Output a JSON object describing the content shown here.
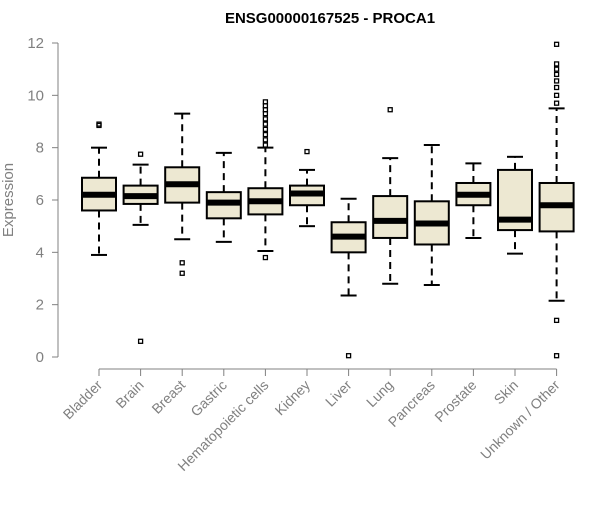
{
  "chart_data": {
    "type": "boxplot",
    "title": "ENSG00000167525 - PROCA1",
    "xlabel": "",
    "ylabel": "Expression",
    "ylim": [
      0,
      12
    ],
    "yticks": [
      0,
      2,
      4,
      6,
      8,
      10,
      12
    ],
    "colors": {
      "box_fill": "#EDE8D2",
      "stroke": "#000000",
      "axis": "#808080"
    },
    "categories": [
      "Bladder",
      "Brain",
      "Breast",
      "Gastric",
      "Hematopoietic cells",
      "Kidney",
      "Liver",
      "Lung",
      "Pancreas",
      "Prostate",
      "Skin",
      "Unknown / Other"
    ],
    "boxes": [
      {
        "name": "Bladder",
        "whisker_low": 3.9,
        "q1": 5.6,
        "median": 6.2,
        "q3": 6.85,
        "whisker_high": 8.0,
        "outliers": [
          8.85,
          8.9
        ]
      },
      {
        "name": "Brain",
        "whisker_low": 5.05,
        "q1": 5.85,
        "median": 6.15,
        "q3": 6.55,
        "whisker_high": 7.35,
        "outliers": [
          7.75,
          0.6
        ]
      },
      {
        "name": "Breast",
        "whisker_low": 4.5,
        "q1": 5.9,
        "median": 6.6,
        "q3": 7.25,
        "whisker_high": 9.3,
        "outliers": [
          3.6,
          3.2
        ]
      },
      {
        "name": "Gastric",
        "whisker_low": 4.4,
        "q1": 5.3,
        "median": 5.9,
        "q3": 6.3,
        "whisker_high": 7.8,
        "outliers": []
      },
      {
        "name": "Hematopoietic cells",
        "whisker_low": 4.05,
        "q1": 5.45,
        "median": 5.95,
        "q3": 6.45,
        "whisker_high": 8.0,
        "outliers": [
          3.8,
          8.1,
          8.3,
          8.5,
          8.7,
          8.9,
          9.1,
          9.3,
          9.45,
          9.6,
          9.75
        ]
      },
      {
        "name": "Kidney",
        "whisker_low": 5.0,
        "q1": 5.8,
        "median": 6.25,
        "q3": 6.55,
        "whisker_high": 7.15,
        "outliers": [
          7.85
        ]
      },
      {
        "name": "Liver",
        "whisker_low": 2.35,
        "q1": 4.0,
        "median": 4.6,
        "q3": 5.15,
        "whisker_high": 6.05,
        "outliers": [
          0.05
        ]
      },
      {
        "name": "Lung",
        "whisker_low": 2.8,
        "q1": 4.55,
        "median": 5.2,
        "q3": 6.15,
        "whisker_high": 7.6,
        "outliers": [
          9.45
        ]
      },
      {
        "name": "Pancreas",
        "whisker_low": 2.75,
        "q1": 4.3,
        "median": 5.1,
        "q3": 5.95,
        "whisker_high": 8.1,
        "outliers": []
      },
      {
        "name": "Prostate",
        "whisker_low": 4.55,
        "q1": 5.8,
        "median": 6.2,
        "q3": 6.65,
        "whisker_high": 7.4,
        "outliers": []
      },
      {
        "name": "Skin",
        "whisker_low": 3.95,
        "q1": 4.85,
        "median": 5.25,
        "q3": 7.15,
        "whisker_high": 7.65,
        "outliers": []
      },
      {
        "name": "Unknown / Other",
        "whisker_low": 2.15,
        "q1": 4.8,
        "median": 5.8,
        "q3": 6.65,
        "whisker_high": 9.5,
        "outliers": [
          0.05,
          1.4,
          9.7,
          10.0,
          10.3,
          10.55,
          10.8,
          11.0,
          11.2,
          11.95
        ]
      }
    ]
  }
}
